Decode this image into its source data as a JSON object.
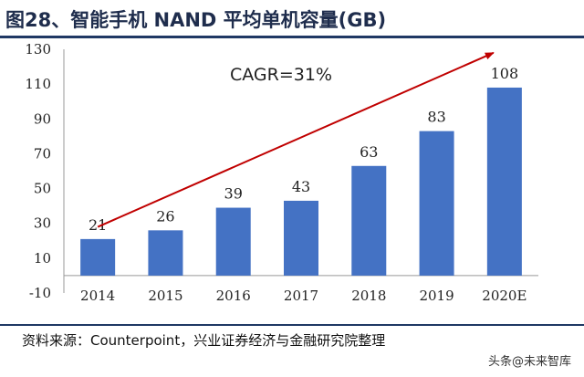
{
  "figure": {
    "title": "图28、智能手机 NAND 平均单机容量(GB)",
    "source": "资料来源：Counterpoint，兴业证券经济与金融研究院整理",
    "watermark": "头条@未来智库"
  },
  "chart_data": {
    "type": "bar",
    "categories": [
      "2014",
      "2015",
      "2016",
      "2017",
      "2018",
      "2019",
      "2020E"
    ],
    "values": [
      21,
      26,
      39,
      43,
      63,
      83,
      108
    ],
    "title": "",
    "xlabel": "",
    "ylabel": "",
    "ylim": [
      -10,
      130
    ],
    "yticks": [
      -10,
      10,
      30,
      50,
      70,
      90,
      110,
      130
    ],
    "grid": false,
    "bar_color": "#4472c4",
    "data_labels": true,
    "annotation": {
      "text": "CAGR=31%",
      "arrow_color": "#c00000",
      "arrow_from": {
        "category": "2014",
        "value": 28
      },
      "arrow_to": {
        "category": "2020E",
        "value": 128
      }
    }
  }
}
